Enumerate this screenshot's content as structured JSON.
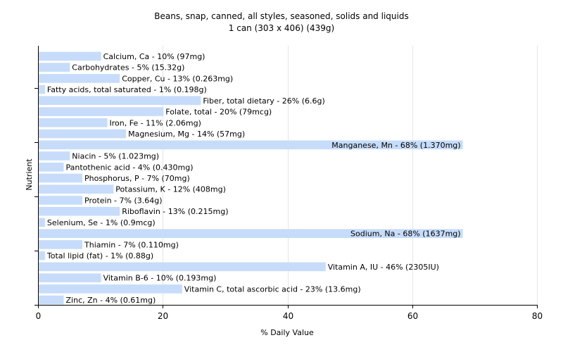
{
  "chart_data": {
    "type": "bar",
    "orientation": "horizontal",
    "title": "Beans, snap, canned, all styles, seasoned, solids and liquids",
    "subtitle": "1 can (303 x 406) (439g)",
    "xlabel": "% Daily Value",
    "ylabel": "Nutrient",
    "xlim": [
      0,
      80
    ],
    "xticks": [
      0,
      20,
      40,
      60,
      80
    ],
    "grid": true,
    "bar_color": "#c6dcfa",
    "categories": [
      "Calcium, Ca",
      "Carbohydrates",
      "Copper, Cu",
      "Fatty acids, total saturated",
      "Fiber, total dietary",
      "Folate, total",
      "Iron, Fe",
      "Magnesium, Mg",
      "Manganese, Mn",
      "Niacin",
      "Pantothenic acid",
      "Phosphorus, P",
      "Potassium, K",
      "Protein",
      "Riboflavin",
      "Selenium, Se",
      "Sodium, Na",
      "Thiamin",
      "Total lipid (fat)",
      "Vitamin A, IU",
      "Vitamin B-6",
      "Vitamin C, total ascorbic acid",
      "Zinc, Zn"
    ],
    "values": [
      10,
      5,
      13,
      1,
      26,
      20,
      11,
      14,
      68,
      5,
      4,
      7,
      12,
      7,
      13,
      1,
      68,
      7,
      1,
      46,
      10,
      23,
      4
    ],
    "labels": [
      "Calcium, Ca - 10% (97mg)",
      "Carbohydrates - 5% (15.32g)",
      "Copper, Cu - 13% (0.263mg)",
      "Fatty acids, total saturated - 1% (0.198g)",
      "Fiber, total dietary - 26% (6.6g)",
      "Folate, total - 20% (79mcg)",
      "Iron, Fe - 11% (2.06mg)",
      "Magnesium, Mg - 14% (57mg)",
      "Manganese, Mn - 68% (1.370mg)",
      "Niacin - 5% (1.023mg)",
      "Pantothenic acid - 4% (0.430mg)",
      "Phosphorus, P - 7% (70mg)",
      "Potassium, K - 12% (408mg)",
      "Protein - 7% (3.64g)",
      "Riboflavin - 13% (0.215mg)",
      "Selenium, Se - 1% (0.9mcg)",
      "Sodium, Na - 68% (1637mg)",
      "Thiamin - 7% (0.110mg)",
      "Total lipid (fat) - 1% (0.88g)",
      "Vitamin A, IU - 46% (2305IU)",
      "Vitamin B-6 - 10% (0.193mg)",
      "Vitamin C, total ascorbic acid - 23% (13.6mg)",
      "Zinc, Zn - 4% (0.61mg)"
    ]
  }
}
